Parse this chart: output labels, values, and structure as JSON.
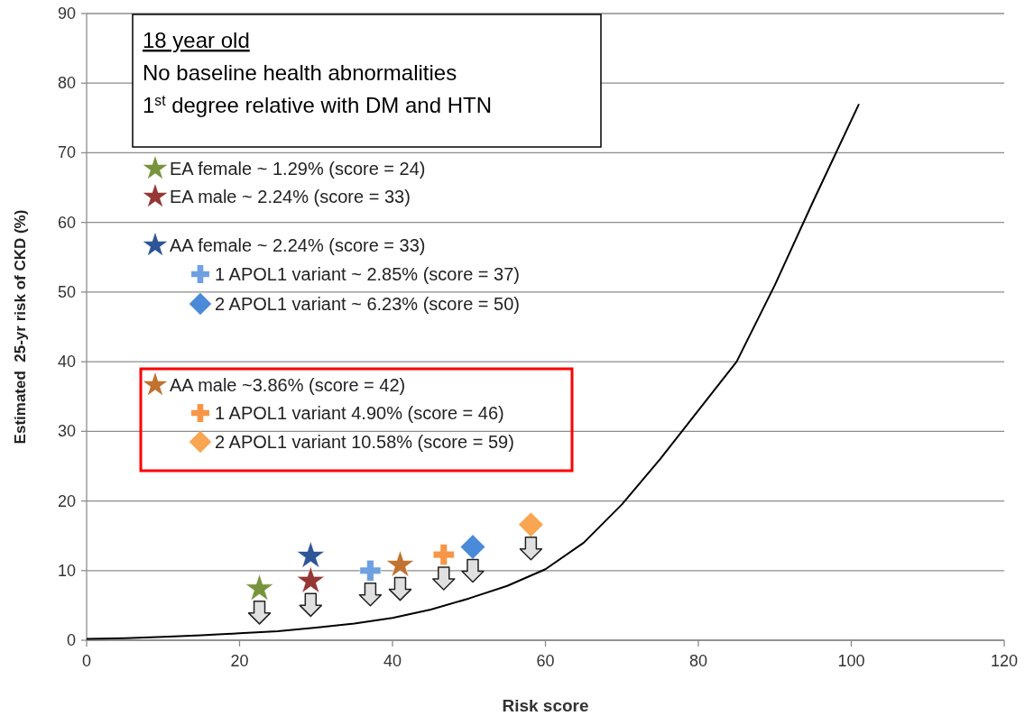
{
  "chart_data": {
    "type": "scatter",
    "xlabel": "Risk score",
    "ylabel": "Estimated  25-yr risk of CKD (%)",
    "xlim": [
      0,
      120
    ],
    "ylim": [
      0,
      90
    ],
    "xticks": [
      0,
      20,
      40,
      60,
      80,
      100,
      120
    ],
    "yticks": [
      0,
      10,
      20,
      30,
      40,
      50,
      60,
      70,
      80,
      90
    ],
    "grid": "y",
    "legend": "top left",
    "annotations": [
      "18 year old",
      "No baseline health abnormalities",
      "1$^{st}$ degree relative with DM and HTN"
    ],
    "series": [
      {
        "type": "line",
        "color": "#000000",
        "marker": "none",
        "x": [
          0,
          5,
          10,
          15,
          20,
          25,
          30,
          35,
          40,
          45,
          50,
          55,
          60,
          65,
          70,
          75,
          80,
          85,
          90,
          95,
          101
        ],
        "values": [
          0.2,
          0.3,
          0.5,
          0.7,
          1.0,
          1.3,
          1.8,
          2.4,
          3.2,
          4.4,
          6.0,
          7.8,
          10.2,
          14,
          19.5,
          26,
          33,
          40,
          51,
          63,
          77
        ]
      },
      {
        "name": "EA female ~ 1.29% (score = 24)",
        "color": "#77933c",
        "marker": "star",
        "x": [
          22.6
        ],
        "values": [
          7.4
        ]
      },
      {
        "name": "EA male ~ 2.24% (score = 33)",
        "color": "#953735",
        "marker": "star",
        "x": [
          29.3
        ],
        "values": [
          8.5
        ]
      },
      {
        "name": "AA female ~ 2.24% (score = 33)",
        "color": "#2e5597",
        "marker": "star",
        "x": [
          29.3
        ],
        "values": [
          12.1
        ]
      },
      {
        "name": "1 APOL1 variant ~ 2.85% (score = 37)",
        "color": "#6fa0e0",
        "marker": "cross",
        "x": [
          37.1
        ],
        "values": [
          10.0
        ]
      },
      {
        "name": "2 APOL1 variant ~ 6.23% (score = 50)",
        "color": "#4a8ad8",
        "marker": "diamond",
        "x": [
          50.5
        ],
        "values": [
          13.4
        ]
      },
      {
        "name": "AA male ~3.86% (score = 42)",
        "color": "#c0722e",
        "marker": "star",
        "x": [
          41.0
        ],
        "values": [
          10.8
        ]
      },
      {
        "name": "1 APOL1 variant 4.90% (score = 46)",
        "color": "#f79646",
        "marker": "cross",
        "x": [
          46.7
        ],
        "values": [
          12.3
        ]
      },
      {
        "name": "2 APOL1 variant 10.58% (score = 59)",
        "color": "#f9a552",
        "marker": "diamond",
        "x": [
          58.1
        ],
        "values": [
          16.6
        ]
      }
    ]
  }
}
